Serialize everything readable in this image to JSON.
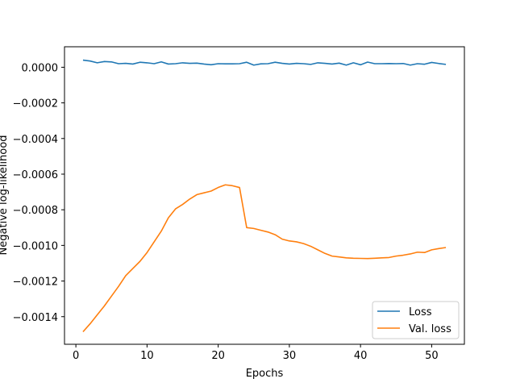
{
  "chart_data": {
    "type": "line",
    "title": "",
    "xlabel": "Epochs",
    "ylabel": "Negative log-likelihood",
    "xlim": [
      -1.6,
      54.6
    ],
    "ylim": [
      -0.001555,
      0.000115
    ],
    "xticks": [
      0,
      10,
      20,
      30,
      40,
      50
    ],
    "xtick_labels": [
      "0",
      "10",
      "20",
      "30",
      "40",
      "50"
    ],
    "yticks": [
      0.0,
      -0.0002,
      -0.0004,
      -0.0006,
      -0.0008,
      -0.001,
      -0.0012,
      -0.0014
    ],
    "ytick_labels": [
      "0.0000",
      "−0.0002",
      "−0.0004",
      "−0.0006",
      "−0.0008",
      "−0.0010",
      "−0.0012",
      "−0.0014"
    ],
    "grid": false,
    "legend": {
      "placement": "lower-right"
    },
    "x": [
      1,
      2,
      3,
      4,
      5,
      6,
      7,
      8,
      9,
      10,
      11,
      12,
      13,
      14,
      15,
      16,
      17,
      18,
      19,
      20,
      21,
      22,
      23,
      24,
      25,
      26,
      27,
      28,
      29,
      30,
      31,
      32,
      33,
      34,
      35,
      36,
      37,
      38,
      39,
      40,
      41,
      42,
      43,
      44,
      45,
      46,
      47,
      48,
      49,
      50,
      51,
      52
    ],
    "series": [
      {
        "name": "Loss",
        "color": "#1f77b4",
        "values": [
          4e-05,
          3.5e-05,
          2.5e-05,
          3.2e-05,
          3e-05,
          2e-05,
          2.2e-05,
          1.8e-05,
          2.8e-05,
          2.5e-05,
          2e-05,
          3e-05,
          1.8e-05,
          2e-05,
          2.5e-05,
          2.2e-05,
          2.3e-05,
          1.8e-05,
          1.4e-05,
          2e-05,
          1.9e-05,
          1.9e-05,
          2e-05,
          2.8e-05,
          1.2e-05,
          1.9e-05,
          2e-05,
          2.8e-05,
          2.2e-05,
          1.8e-05,
          2.2e-05,
          2e-05,
          1.6e-05,
          2.5e-05,
          2.2e-05,
          1.8e-05,
          2.3e-05,
          1.2e-05,
          2.5e-05,
          1.4e-05,
          2.9e-05,
          2e-05,
          2e-05,
          2.1e-05,
          2e-05,
          2.1e-05,
          1.2e-05,
          2e-05,
          1.7e-05,
          2.7e-05,
          2.1e-05,
          1.6e-05
        ]
      },
      {
        "name": "Val. loss",
        "color": "#ff7f0e",
        "values": [
          -0.001485,
          -0.00144,
          -0.00139,
          -0.00134,
          -0.001285,
          -0.00123,
          -0.00117,
          -0.00113,
          -0.00109,
          -0.00104,
          -0.00098,
          -0.00092,
          -0.000845,
          -0.000795,
          -0.00077,
          -0.00074,
          -0.000715,
          -0.000705,
          -0.000695,
          -0.000675,
          -0.00066,
          -0.000665,
          -0.000675,
          -0.0009,
          -0.000905,
          -0.000915,
          -0.000925,
          -0.00094,
          -0.000965,
          -0.000975,
          -0.00098,
          -0.00099,
          -0.001005,
          -0.001025,
          -0.001045,
          -0.00106,
          -0.001065,
          -0.00107,
          -0.001072,
          -0.001073,
          -0.001074,
          -0.001072,
          -0.00107,
          -0.001068,
          -0.00106,
          -0.001055,
          -0.001048,
          -0.001038,
          -0.00104,
          -0.001025,
          -0.001018,
          -0.001012
        ]
      }
    ]
  }
}
